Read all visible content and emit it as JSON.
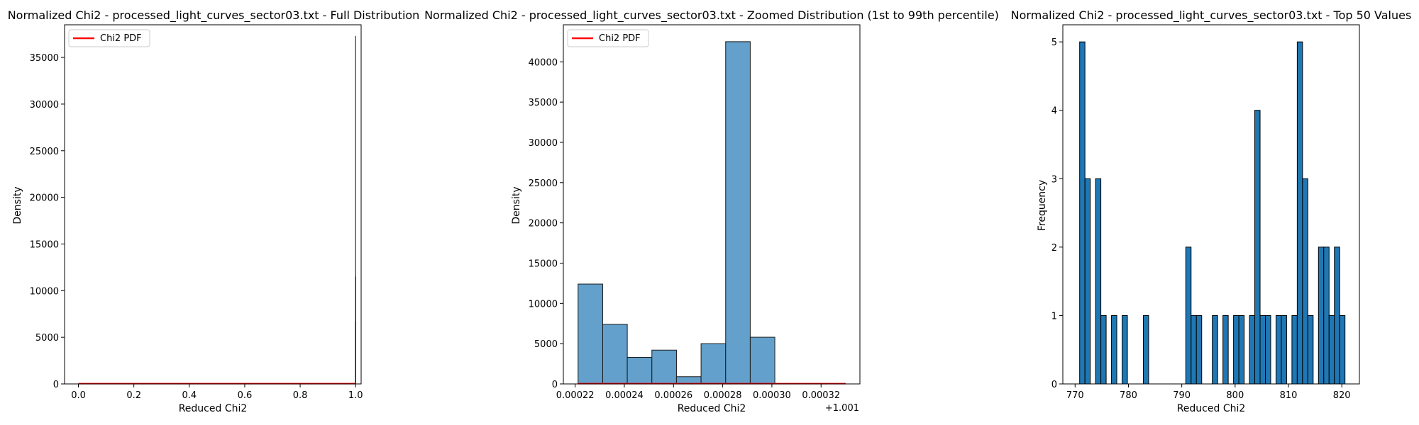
{
  "chart_data": [
    {
      "type": "histogram",
      "title": "Normalized Chi2 - processed_light_curves_sector03.txt - Full Distribution",
      "xlabel": "Reduced Chi2",
      "ylabel": "Density",
      "xlim": [
        -0.05,
        1.02
      ],
      "ylim": [
        0,
        38500
      ],
      "xticks": [
        0.0,
        0.2,
        0.4,
        0.6,
        0.8,
        1.0
      ],
      "xtick_labels": [
        "0.0",
        "0.2",
        "0.4",
        "0.6",
        "0.8",
        "1.0"
      ],
      "yticks": [
        0,
        5000,
        10000,
        15000,
        20000,
        25000,
        30000,
        35000
      ],
      "ytick_labels": [
        "0",
        "5000",
        "10000",
        "15000",
        "20000",
        "25000",
        "30000",
        "35000"
      ],
      "spikes": [
        {
          "x": 1.0,
          "value": 37300
        },
        {
          "x": 1.0005,
          "value": 11500
        },
        {
          "x": 0.9995,
          "value": 6700
        }
      ],
      "pdf_line": {
        "name": "Chi2 PDF",
        "x": [
          0.0,
          1.0
        ],
        "y": [
          30,
          30
        ],
        "color": "#ff0000"
      },
      "legend": {
        "position": "upper left",
        "entries": [
          "Chi2 PDF"
        ]
      },
      "grid": false
    },
    {
      "type": "histogram",
      "title": "Normalized Chi2 - processed_light_curves_sector03.txt - Zoomed Distribution (1st to 99th percentile)",
      "xlabel": "Reduced Chi2",
      "ylabel": "Density",
      "offset_text": "+1.001",
      "xlim": [
        0.0002152,
        0.0003358
      ],
      "ylim": [
        0,
        44600
      ],
      "xticks": [
        0.00022,
        0.00024,
        0.00026,
        0.00028,
        0.0003,
        0.00032
      ],
      "xtick_labels": [
        "0.00022",
        "0.00024",
        "0.00026",
        "0.00028",
        "0.00030",
        "0.00032"
      ],
      "yticks": [
        0,
        5000,
        10000,
        15000,
        20000,
        25000,
        30000,
        35000,
        40000
      ],
      "ytick_labels": [
        "0",
        "5000",
        "10000",
        "15000",
        "20000",
        "25000",
        "30000",
        "35000",
        "40000"
      ],
      "bin_edges": [
        0.0002212,
        0.0002312,
        0.0002412,
        0.0002512,
        0.0002612,
        0.0002712,
        0.0002812,
        0.0002912,
        0.0003012,
        0.0003112
      ],
      "values": [
        12400,
        7400,
        3300,
        4200,
        900,
        5000,
        42500,
        5800,
        0
      ],
      "bar_color": "#63a0cb",
      "pdf_line": {
        "name": "Chi2 PDF",
        "x": [
          0.0002212,
          0.00033
        ],
        "y": [
          30,
          30
        ],
        "color": "#ff0000"
      },
      "legend": {
        "position": "upper left",
        "entries": [
          "Chi2 PDF"
        ]
      },
      "grid": false
    },
    {
      "type": "bar",
      "title": "Normalized Chi2 - processed_light_curves_sector03.txt - Top 50 Values",
      "xlabel": "Reduced Chi2",
      "ylabel": "Frequency",
      "xlim": [
        767.7,
        823.3
      ],
      "ylim": [
        0,
        5.25
      ],
      "xticks": [
        770,
        780,
        790,
        800,
        810,
        820
      ],
      "xtick_labels": [
        "770",
        "780",
        "790",
        "800",
        "810",
        "820"
      ],
      "yticks": [
        0,
        1,
        2,
        3,
        4,
        5
      ],
      "ytick_labels": [
        "0",
        "1",
        "2",
        "3",
        "4",
        "5"
      ],
      "bin_start": 770.85,
      "bin_width": 0.995,
      "values": [
        5,
        3,
        0,
        3,
        1,
        0,
        1,
        0,
        1,
        0,
        0,
        0,
        1,
        0,
        0,
        0,
        0,
        0,
        0,
        0,
        2,
        1,
        1,
        0,
        0,
        1,
        0,
        1,
        0,
        1,
        1,
        0,
        1,
        4,
        1,
        1,
        0,
        1,
        1,
        0,
        1,
        5,
        3,
        1,
        0,
        2,
        2,
        1,
        2,
        1
      ],
      "bar_color": "#1f77b4",
      "grid": false
    }
  ]
}
